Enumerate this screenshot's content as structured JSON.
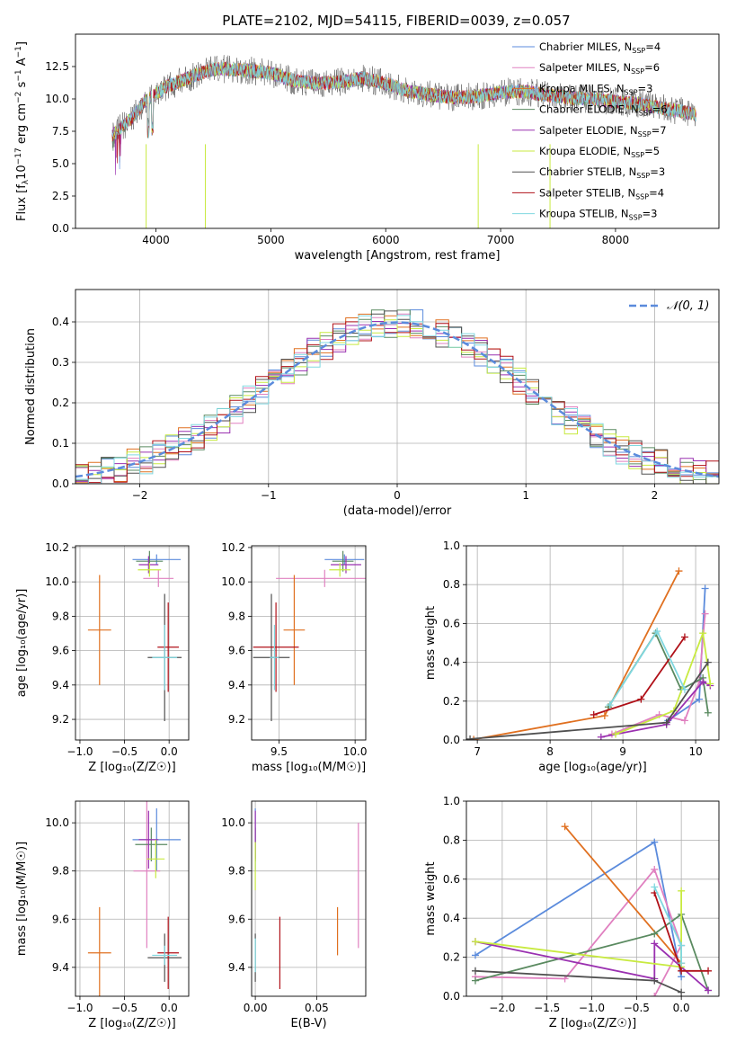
{
  "figure_title": "PLATE=2102, MJD=54115, FIBERID=0039, z=0.057",
  "series": [
    {
      "key": "CM",
      "color": "#5b8bdc",
      "label": "Chabrier MILES, N",
      "sub": "SSP",
      "suffix": "=4"
    },
    {
      "key": "SM",
      "color": "#e080c0",
      "label": "Salpeter MILES, N",
      "sub": "SSP",
      "suffix": "=6"
    },
    {
      "key": "KM",
      "color": "#e07020",
      "label": "Kroupa MILES, N",
      "sub": "SSP",
      "suffix": "=3"
    },
    {
      "key": "CE",
      "color": "#5a8a60",
      "label": "Chabrier ELODIE, N",
      "sub": "SSP",
      "suffix": "=6"
    },
    {
      "key": "SE",
      "color": "#9a30b0",
      "label": "Salpeter ELODIE, N",
      "sub": "SSP",
      "suffix": "=7"
    },
    {
      "key": "KE",
      "color": "#c8ea40",
      "label": "Kroupa ELODIE, N",
      "sub": "SSP",
      "suffix": "=5"
    },
    {
      "key": "CS",
      "color": "#505050",
      "label": "Chabrier STELIB, N",
      "sub": "SSP",
      "suffix": "=3"
    },
    {
      "key": "SS",
      "color": "#b01018",
      "label": "Salpeter STELIB, N",
      "sub": "SSP",
      "suffix": "=4"
    },
    {
      "key": "KS",
      "color": "#80d8e0",
      "label": "Kroupa STELIB, N",
      "sub": "SSP",
      "suffix": "=3"
    }
  ],
  "chart_data": [
    {
      "type": "line",
      "id": "spectrum",
      "xlabel": "wavelength [Angstrom, rest frame]",
      "ylabel": "Flux [f_λ 10^-17 erg cm^-2 s^-1 A^-1]",
      "xlim": [
        3300,
        8900
      ],
      "ylim": [
        0,
        15
      ],
      "xticks": [
        4000,
        5000,
        6000,
        7000,
        8000
      ],
      "yticks": [
        0.0,
        2.5,
        5.0,
        7.5,
        10.0,
        12.5
      ],
      "ytick_labels": [
        "0.0",
        "2.5",
        "5.0",
        "7.5",
        "10.0",
        "12.5"
      ],
      "grid": false,
      "legend": "upper right",
      "spectrum_anchors": {
        "x": [
          3620,
          3700,
          3800,
          3900,
          4000,
          4100,
          4200,
          4300,
          4400,
          4500,
          4600,
          4800,
          5000,
          5200,
          5400,
          5600,
          5800,
          6000,
          6200,
          6400,
          6600,
          6800,
          7000,
          7200,
          7400,
          7600,
          7800,
          8000,
          8200,
          8400,
          8600,
          8700
        ],
        "y": [
          7.2,
          7.8,
          8.6,
          9.8,
          10.4,
          11.0,
          11.3,
          11.7,
          12.0,
          12.3,
          12.3,
          12.2,
          12.0,
          11.4,
          11.2,
          11.3,
          11.6,
          11.2,
          10.6,
          10.3,
          10.1,
          10.2,
          10.5,
          10.6,
          10.3,
          10.1,
          10.0,
          9.8,
          9.6,
          9.3,
          9.0,
          8.8
        ]
      }
    },
    {
      "type": "line",
      "id": "residuals",
      "xlabel": "(data-model)/error",
      "ylabel": "Normed distribution",
      "xlim": [
        -2.5,
        2.5
      ],
      "ylim": [
        0,
        0.48
      ],
      "xticks": [
        -2,
        -1,
        0,
        1,
        2
      ],
      "xtick_labels": [
        "−2",
        "−1",
        "0",
        "1",
        "2"
      ],
      "yticks": [
        0.0,
        0.1,
        0.2,
        0.3,
        0.4
      ],
      "ytick_labels": [
        "0.0",
        "0.1",
        "0.2",
        "0.3",
        "0.4"
      ],
      "grid": true,
      "legend_label": "𝒩(0, 1)",
      "legend": "upper right",
      "gaussian": {
        "mu": 0,
        "sigma": 1
      }
    },
    {
      "type": "scatter",
      "id": "age_vs_Z",
      "xlabel": "Z [log₁₀(Z/Z☉)]",
      "ylabel": "age  [log₁₀(age/yr)]",
      "xlim": [
        -1.05,
        0.22
      ],
      "ylim": [
        9.08,
        10.21
      ],
      "xticks": [
        -1.0,
        -0.5,
        0.0
      ],
      "xtick_labels": [
        "−1.0",
        "−0.5",
        "0.0"
      ],
      "yticks": [
        9.2,
        9.4,
        9.6,
        9.8,
        10.0,
        10.2
      ],
      "ytick_labels": [
        "9.2",
        "9.4",
        "9.6",
        "9.8",
        "10.0",
        "10.2"
      ],
      "grid": true,
      "points": [
        {
          "s": 0,
          "x": -0.14,
          "y": 10.13,
          "xerr": 0.27,
          "yerr": 0.03
        },
        {
          "s": 1,
          "x": -0.12,
          "y": 10.02,
          "xerr": 0.17,
          "yerr": 0.05
        },
        {
          "s": 2,
          "x": -0.78,
          "y": 9.72,
          "xerr": 0.13,
          "yerr": 0.32
        },
        {
          "s": 3,
          "x": -0.22,
          "y": 10.12,
          "xerr": 0.15,
          "yerr": 0.06
        },
        {
          "s": 4,
          "x": -0.23,
          "y": 10.1,
          "xerr": 0.11,
          "yerr": 0.05
        },
        {
          "s": 5,
          "x": -0.22,
          "y": 10.07,
          "xerr": 0.13,
          "yerr": 0.04
        },
        {
          "s": 6,
          "x": -0.05,
          "y": 9.56,
          "xerr": 0.19,
          "yerr": 0.37
        },
        {
          "s": 7,
          "x": -0.01,
          "y": 9.62,
          "xerr": 0.12,
          "yerr": 0.26
        },
        {
          "s": 8,
          "x": -0.05,
          "y": 9.56,
          "xerr": 0.14,
          "yerr": 0.19
        }
      ]
    },
    {
      "type": "scatter",
      "id": "age_vs_mass",
      "xlabel": "mass [log₁₀(M/M☉)]",
      "ylabel": "",
      "xlim": [
        9.32,
        10.07
      ],
      "ylim": [
        9.08,
        10.21
      ],
      "xticks": [
        9.5,
        10.0
      ],
      "xtick_labels": [
        "9.5",
        "10.0"
      ],
      "yticks": [
        9.2,
        9.4,
        9.6,
        9.8,
        10.0,
        10.2
      ],
      "ytick_labels": [
        "9.2",
        "9.4",
        "9.6",
        "9.8",
        "10.0",
        "10.2"
      ],
      "grid": true,
      "points": [
        {
          "s": 0,
          "x": 9.93,
          "y": 10.13,
          "xerr": 0.13,
          "yerr": 0.03
        },
        {
          "s": 1,
          "x": 9.8,
          "y": 10.02,
          "xerr": 0.32,
          "yerr": 0.05
        },
        {
          "s": 2,
          "x": 9.6,
          "y": 9.72,
          "xerr": 0.07,
          "yerr": 0.32
        },
        {
          "s": 3,
          "x": 9.92,
          "y": 10.12,
          "xerr": 0.07,
          "yerr": 0.06
        },
        {
          "s": 4,
          "x": 9.94,
          "y": 10.1,
          "xerr": 0.1,
          "yerr": 0.05
        },
        {
          "s": 5,
          "x": 9.9,
          "y": 10.07,
          "xerr": 0.07,
          "yerr": 0.04
        },
        {
          "s": 6,
          "x": 9.45,
          "y": 9.56,
          "xerr": 0.12,
          "yerr": 0.37
        },
        {
          "s": 7,
          "x": 9.48,
          "y": 9.62,
          "xerr": 0.15,
          "yerr": 0.26
        },
        {
          "s": 8,
          "x": 9.47,
          "y": 9.56,
          "xerr": 0.03,
          "yerr": 0.19
        }
      ]
    },
    {
      "type": "line",
      "id": "weight_vs_age",
      "xlabel": "age  [log₁₀(age/yr)]",
      "ylabel": "mass weight",
      "xlim": [
        6.85,
        10.32
      ],
      "ylim": [
        0,
        1.0
      ],
      "xticks": [
        7,
        8,
        9,
        10
      ],
      "xtick_labels": [
        "7",
        "8",
        "9",
        "10"
      ],
      "yticks": [
        0.0,
        0.2,
        0.4,
        0.6,
        0.8,
        1.0
      ],
      "ytick_labels": [
        "0.0",
        "0.2",
        "0.4",
        "0.6",
        "0.8",
        "1.0"
      ],
      "grid": true,
      "lines": [
        {
          "s": 0,
          "x": [
            9.62,
            10.05,
            10.13
          ],
          "y": [
            0.1,
            0.21,
            0.78
          ]
        },
        {
          "s": 1,
          "x": [
            8.85,
            9.5,
            9.85,
            10.05,
            10.13
          ],
          "y": [
            0.03,
            0.13,
            0.1,
            0.3,
            0.65
          ]
        },
        {
          "s": 2,
          "x": [
            6.95,
            8.75,
            9.77
          ],
          "y": [
            0.003,
            0.125,
            0.87
          ]
        },
        {
          "s": 3,
          "x": [
            8.8,
            9.45,
            9.8,
            10.1,
            10.17
          ],
          "y": [
            0.17,
            0.55,
            0.26,
            0.32,
            0.14
          ]
        },
        {
          "s": 4,
          "x": [
            8.7,
            9.6,
            10.1,
            10.2
          ],
          "y": [
            0.015,
            0.08,
            0.3,
            0.28
          ]
        },
        {
          "s": 5,
          "x": [
            8.9,
            9.7,
            10.1,
            10.2
          ],
          "y": [
            0.03,
            0.15,
            0.55,
            0.29
          ]
        },
        {
          "s": 6,
          "x": [
            6.9,
            9.6,
            10.17
          ],
          "y": [
            0.005,
            0.09,
            0.4
          ]
        },
        {
          "s": 7,
          "x": [
            8.6,
            9.25,
            9.85
          ],
          "y": [
            0.13,
            0.21,
            0.53
          ]
        },
        {
          "s": 8,
          "x": [
            8.82,
            9.47,
            9.85
          ],
          "y": [
            0.18,
            0.56,
            0.26
          ]
        }
      ]
    },
    {
      "type": "scatter",
      "id": "mass_vs_Z",
      "xlabel": "Z [log₁₀(Z/Z☉)]",
      "ylabel": "mass [log₁₀(M/M☉)]",
      "xlim": [
        -1.05,
        0.22
      ],
      "ylim": [
        9.28,
        10.09
      ],
      "xticks": [
        -1.0,
        -0.5,
        0.0
      ],
      "xtick_labels": [
        "−1.0",
        "−0.5",
        "0.0"
      ],
      "yticks": [
        9.4,
        9.6,
        9.8,
        10.0
      ],
      "ytick_labels": [
        "9.4",
        "9.6",
        "9.8",
        "10.0"
      ],
      "grid": true,
      "points": [
        {
          "s": 0,
          "x": -0.14,
          "y": 9.93,
          "xerr": 0.27,
          "yerr": 0.13
        },
        {
          "s": 1,
          "x": -0.25,
          "y": 9.8,
          "xerr": 0.15,
          "yerr": 0.32
        },
        {
          "s": 2,
          "x": -0.78,
          "y": 9.46,
          "xerr": 0.13,
          "yerr": 0.19
        },
        {
          "s": 3,
          "x": -0.2,
          "y": 9.91,
          "xerr": 0.18,
          "yerr": 0.07
        },
        {
          "s": 4,
          "x": -0.23,
          "y": 9.93,
          "xerr": 0.11,
          "yerr": 0.12
        },
        {
          "s": 5,
          "x": -0.15,
          "y": 9.85,
          "xerr": 0.1,
          "yerr": 0.08
        },
        {
          "s": 6,
          "x": -0.05,
          "y": 9.44,
          "xerr": 0.19,
          "yerr": 0.1
        },
        {
          "s": 7,
          "x": -0.01,
          "y": 9.46,
          "xerr": 0.12,
          "yerr": 0.15
        },
        {
          "s": 8,
          "x": -0.05,
          "y": 9.45,
          "xerr": 0.14,
          "yerr": 0.04
        }
      ]
    },
    {
      "type": "scatter",
      "id": "mass_vs_ebv",
      "xlabel": "E(B-V)",
      "ylabel": "",
      "xlim": [
        -0.003,
        0.09
      ],
      "ylim": [
        9.28,
        10.09
      ],
      "xticks": [
        0.0,
        0.05
      ],
      "xtick_labels": [
        "0.00",
        "0.05"
      ],
      "yticks": [
        9.4,
        9.6,
        9.8,
        10.0
      ],
      "ytick_labels": [
        "9.4",
        "9.6",
        "9.8",
        "10.0"
      ],
      "grid": true,
      "points": [
        {
          "s": 0,
          "x": 0.0,
          "y": 9.93,
          "xerr": 0,
          "yerr": 0.13
        },
        {
          "s": 1,
          "x": 0.084,
          "y": 9.74,
          "xerr": 0,
          "yerr": 0.26
        },
        {
          "s": 2,
          "x": 0.067,
          "y": 9.55,
          "xerr": 0,
          "yerr": 0.1
        },
        {
          "s": 3,
          "x": 0.0,
          "y": 9.91,
          "xerr": 0,
          "yerr": 0.07
        },
        {
          "s": 4,
          "x": 0.0,
          "y": 9.95,
          "xerr": 0,
          "yerr": 0.1
        },
        {
          "s": 5,
          "x": 0.0,
          "y": 9.82,
          "xerr": 0,
          "yerr": 0.1
        },
        {
          "s": 6,
          "x": 0.0,
          "y": 9.44,
          "xerr": 0,
          "yerr": 0.1
        },
        {
          "s": 7,
          "x": 0.02,
          "y": 9.46,
          "xerr": 0,
          "yerr": 0.15
        },
        {
          "s": 8,
          "x": 0.0,
          "y": 9.45,
          "xerr": 0,
          "yerr": 0.07
        }
      ]
    },
    {
      "type": "line",
      "id": "weight_vs_Z",
      "xlabel": "Z [log₁₀(Z/Z☉)]",
      "ylabel": "mass weight",
      "xlim": [
        -2.4,
        0.42
      ],
      "ylim": [
        0,
        1.0
      ],
      "xticks": [
        -2.0,
        -1.5,
        -1.0,
        -0.5,
        0.0
      ],
      "xtick_labels": [
        "−2.0",
        "−1.5",
        "−1.0",
        "−0.5",
        "0.0"
      ],
      "yticks": [
        0.0,
        0.2,
        0.4,
        0.6,
        0.8,
        1.0
      ],
      "ytick_labels": [
        "0.0",
        "0.2",
        "0.4",
        "0.6",
        "0.8",
        "1.0"
      ],
      "grid": true,
      "lines": [
        {
          "s": 0,
          "x": [
            -2.3,
            -0.3,
            0.0
          ],
          "y": [
            0.21,
            0.79,
            0.1
          ]
        },
        {
          "s": 1,
          "x": [
            -2.3,
            -1.3,
            -0.3,
            0.0,
            -0.3
          ],
          "y": [
            0.1,
            0.09,
            0.65,
            0.26,
            0.0
          ]
        },
        {
          "s": 2,
          "x": [
            -1.3,
            0.0
          ],
          "y": [
            0.87,
            0.17
          ]
        },
        {
          "s": 3,
          "x": [
            -2.3,
            -0.3,
            0.0,
            0.3
          ],
          "y": [
            0.08,
            0.32,
            0.42,
            0.03
          ]
        },
        {
          "s": 4,
          "x": [
            -2.3,
            -0.3,
            -0.3,
            0.3
          ],
          "y": [
            0.28,
            0.09,
            0.27,
            0.03
          ]
        },
        {
          "s": 5,
          "x": [
            -2.3,
            0.0,
            0.0
          ],
          "y": [
            0.28,
            0.15,
            0.54
          ]
        },
        {
          "s": 6,
          "x": [
            -2.3,
            -0.3,
            0.0
          ],
          "y": [
            0.13,
            0.08,
            0.02
          ]
        },
        {
          "s": 7,
          "x": [
            -0.3,
            0.0,
            0.3
          ],
          "y": [
            0.53,
            0.13,
            0.13
          ]
        },
        {
          "s": 8,
          "x": [
            -0.3,
            0.0,
            0.0
          ],
          "y": [
            0.56,
            0.26,
            0.17
          ]
        }
      ]
    }
  ]
}
